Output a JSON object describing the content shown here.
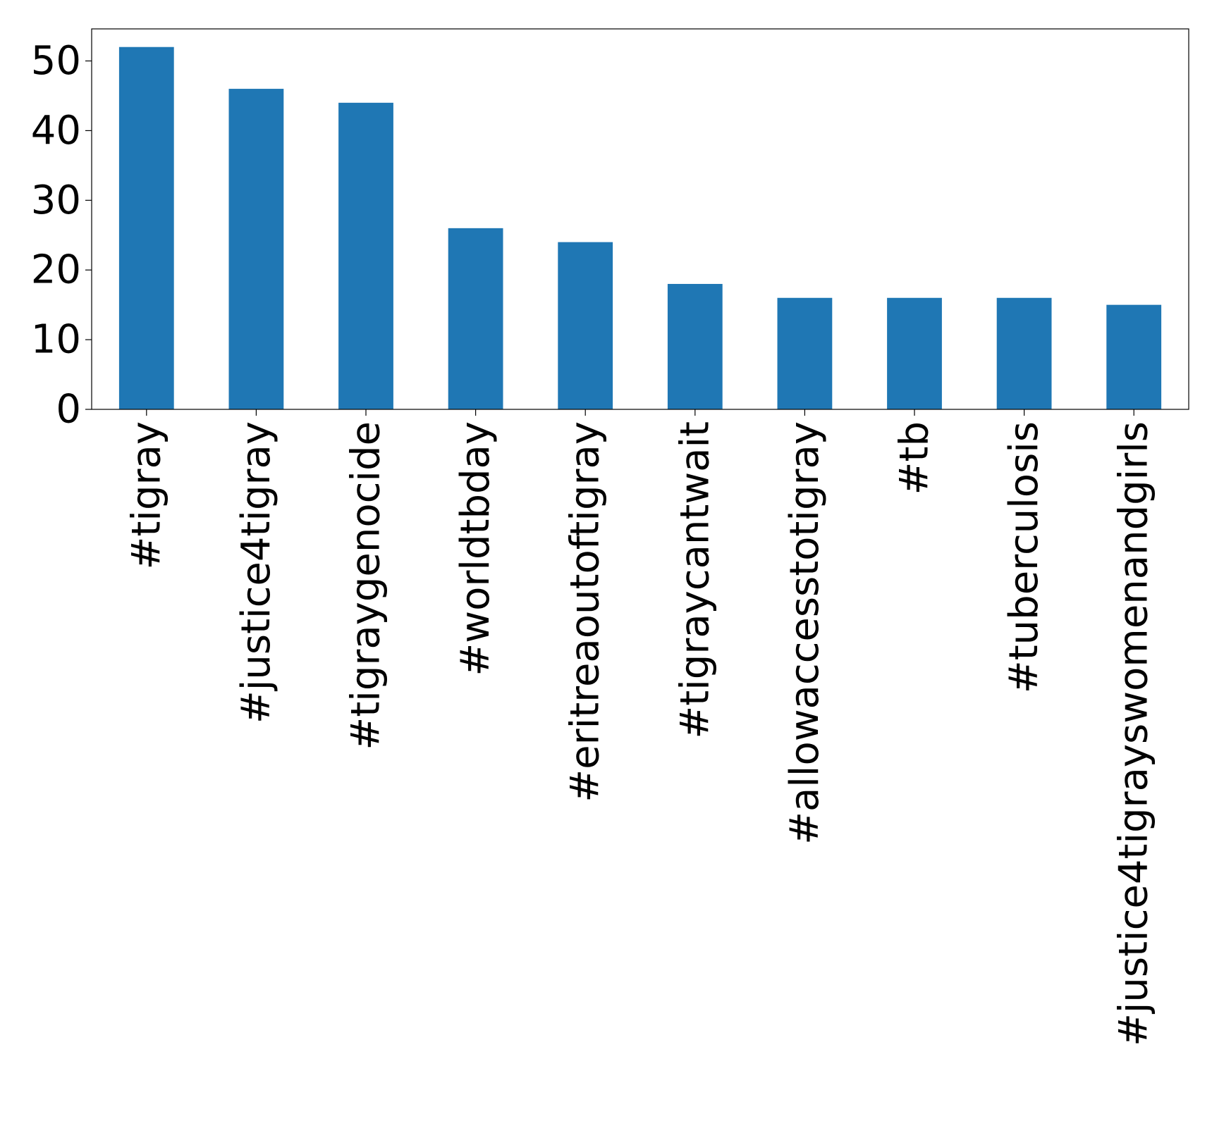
{
  "chart_data": {
    "type": "bar",
    "title": "",
    "xlabel": "",
    "ylabel": "",
    "categories": [
      "#tigray",
      "#justice4tigray",
      "#tigraygenocide",
      "#worldtbday",
      "#eritreaoutoftigray",
      "#tigraycantwait",
      "#allowaccesstotigray",
      "#tb",
      "#tuberculosis",
      "#justice4tigrayswomenandgirls"
    ],
    "values": [
      52,
      46,
      44,
      26,
      24,
      18,
      16,
      16,
      16,
      15
    ],
    "ylim": [
      0,
      54.6
    ],
    "yticks": [
      0,
      10,
      20,
      30,
      40,
      50
    ],
    "grid": false,
    "legend": "none",
    "bar_color": "#1f77b4",
    "axis_color": "#000000"
  }
}
